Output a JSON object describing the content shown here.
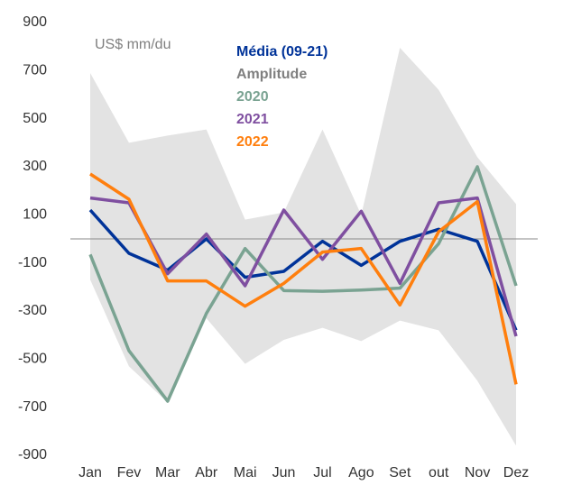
{
  "chart_data": {
    "type": "line",
    "annotation": "US$ mm/du",
    "categories": [
      "Jan",
      "Fev",
      "Mar",
      "Abr",
      "Mai",
      "Jun",
      "Jul",
      "Ago",
      "Set",
      "out",
      "Nov",
      "Dez"
    ],
    "ylim": [
      -900,
      900
    ],
    "yticks": [
      -900,
      -700,
      -500,
      -300,
      -100,
      100,
      300,
      500,
      700,
      900
    ],
    "zero_line": 0,
    "series": [
      {
        "name": "Média (09-21)",
        "color": "#003399",
        "values": [
          120,
          -60,
          -130,
          0,
          -160,
          -135,
          -10,
          -110,
          -10,
          40,
          -10,
          -380
        ]
      },
      {
        "name": "Amplitude",
        "color": "#7f7f7f",
        "fill": "#e3e3e3",
        "type": "band",
        "upper": [
          690,
          400,
          430,
          455,
          80,
          110,
          455,
          100,
          795,
          620,
          340,
          145
        ],
        "lower": [
          -170,
          -530,
          -680,
          -330,
          -520,
          -420,
          -370,
          -425,
          -340,
          -380,
          -590,
          -860
        ]
      },
      {
        "name": "2020",
        "color": "#7aa392",
        "values": [
          -65,
          -465,
          -675,
          -310,
          -40,
          -215,
          -218,
          -213,
          -205,
          -20,
          300,
          -195
        ]
      },
      {
        "name": "2021",
        "color": "#7f4fa0",
        "values": [
          170,
          150,
          -145,
          20,
          -195,
          120,
          -85,
          115,
          -185,
          150,
          170,
          -405
        ]
      },
      {
        "name": "2022",
        "color": "#ff7f0e",
        "values": [
          270,
          165,
          -175,
          -175,
          -280,
          -185,
          -55,
          -40,
          -275,
          30,
          155,
          -605
        ]
      }
    ]
  }
}
